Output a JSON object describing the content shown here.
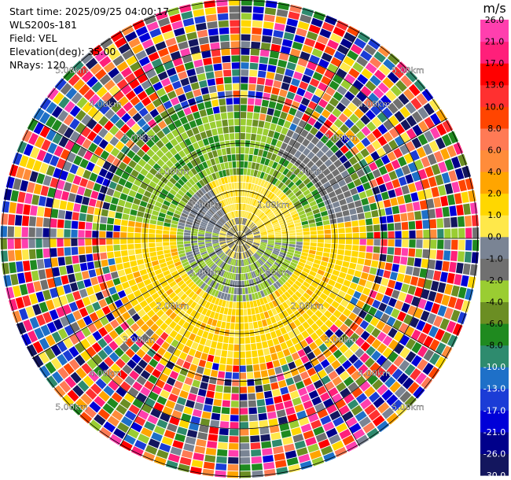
{
  "header": {
    "start_time": "Start time: 2025/09/25 04:00:17",
    "instrument": "WLS200s-181",
    "field": "Field: VEL",
    "elevation": "Elevation(deg): 35.00",
    "nrays": "NRays: 120"
  },
  "chart_data": {
    "type": "heatmap",
    "projection": "polar (PPI)",
    "field": "VEL",
    "rays": 120,
    "range_km": [
      0,
      5.2
    ],
    "range_ring_labels": [
      "1.00km",
      "2.00km",
      "3.00km",
      "4.00km",
      "5.00km"
    ],
    "colorbar": {
      "unit": "m/s",
      "colors": [
        "#13165e",
        "#00008b",
        "#0000d8",
        "#1b3cd6",
        "#1e70c8",
        "#2e8b6e",
        "#1f8a1f",
        "#6b8e23",
        "#9acd32",
        "#707070",
        "#7a8494",
        "#ffe84a",
        "#ffd700",
        "#ffa500",
        "#ff8c3a",
        "#ff7a55",
        "#ff4500",
        "#ff3030",
        "#ff0000",
        "#ff1f7a",
        "#ff3fae"
      ],
      "tick_labels": [
        "-30.0",
        "-26.0",
        "-21.0",
        "-17.0",
        "-13.0",
        "-10.0",
        "-8.0",
        "-6.0",
        "-4.0",
        "-2.0",
        "-1.0",
        "0.0",
        "1.0",
        "2.0",
        "4.0",
        "6.0",
        "8.0",
        "10.0",
        "13.0",
        "17.0",
        "21.0",
        "26.0"
      ]
    }
  }
}
